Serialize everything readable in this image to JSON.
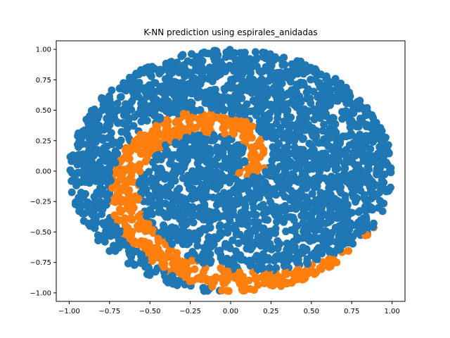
{
  "chart_data": {
    "type": "scatter",
    "title": "K-NN prediction using espirales_anidadas",
    "xlabel": "",
    "ylabel": "",
    "xlim": [
      -1.08,
      1.08
    ],
    "ylim": [
      -1.07,
      1.07
    ],
    "x_ticks": [
      -1.0,
      -0.75,
      -0.5,
      -0.25,
      0.0,
      0.25,
      0.5,
      0.75,
      1.0
    ],
    "x_tick_labels": [
      "−1.00",
      "−0.75",
      "−0.50",
      "−0.25",
      "0.00",
      "0.25",
      "0.50",
      "0.75",
      "1.00"
    ],
    "y_ticks": [
      -1.0,
      -0.75,
      -0.5,
      -0.25,
      0.0,
      0.25,
      0.5,
      0.75,
      1.0
    ],
    "y_tick_labels": [
      "−1.00",
      "−0.75",
      "−0.50",
      "−0.25",
      "0.00",
      "0.25",
      "0.50",
      "0.75",
      "1.00"
    ],
    "grid": false,
    "legend": "none",
    "series": [
      {
        "color": "#1f77b4",
        "description_points": "blue class: points inside unit disk not on orange spiral"
      },
      {
        "color": "#ff7f0e",
        "description_points": "orange class: interleaved spiral arm"
      }
    ],
    "point_count_estimate": 3000
  }
}
